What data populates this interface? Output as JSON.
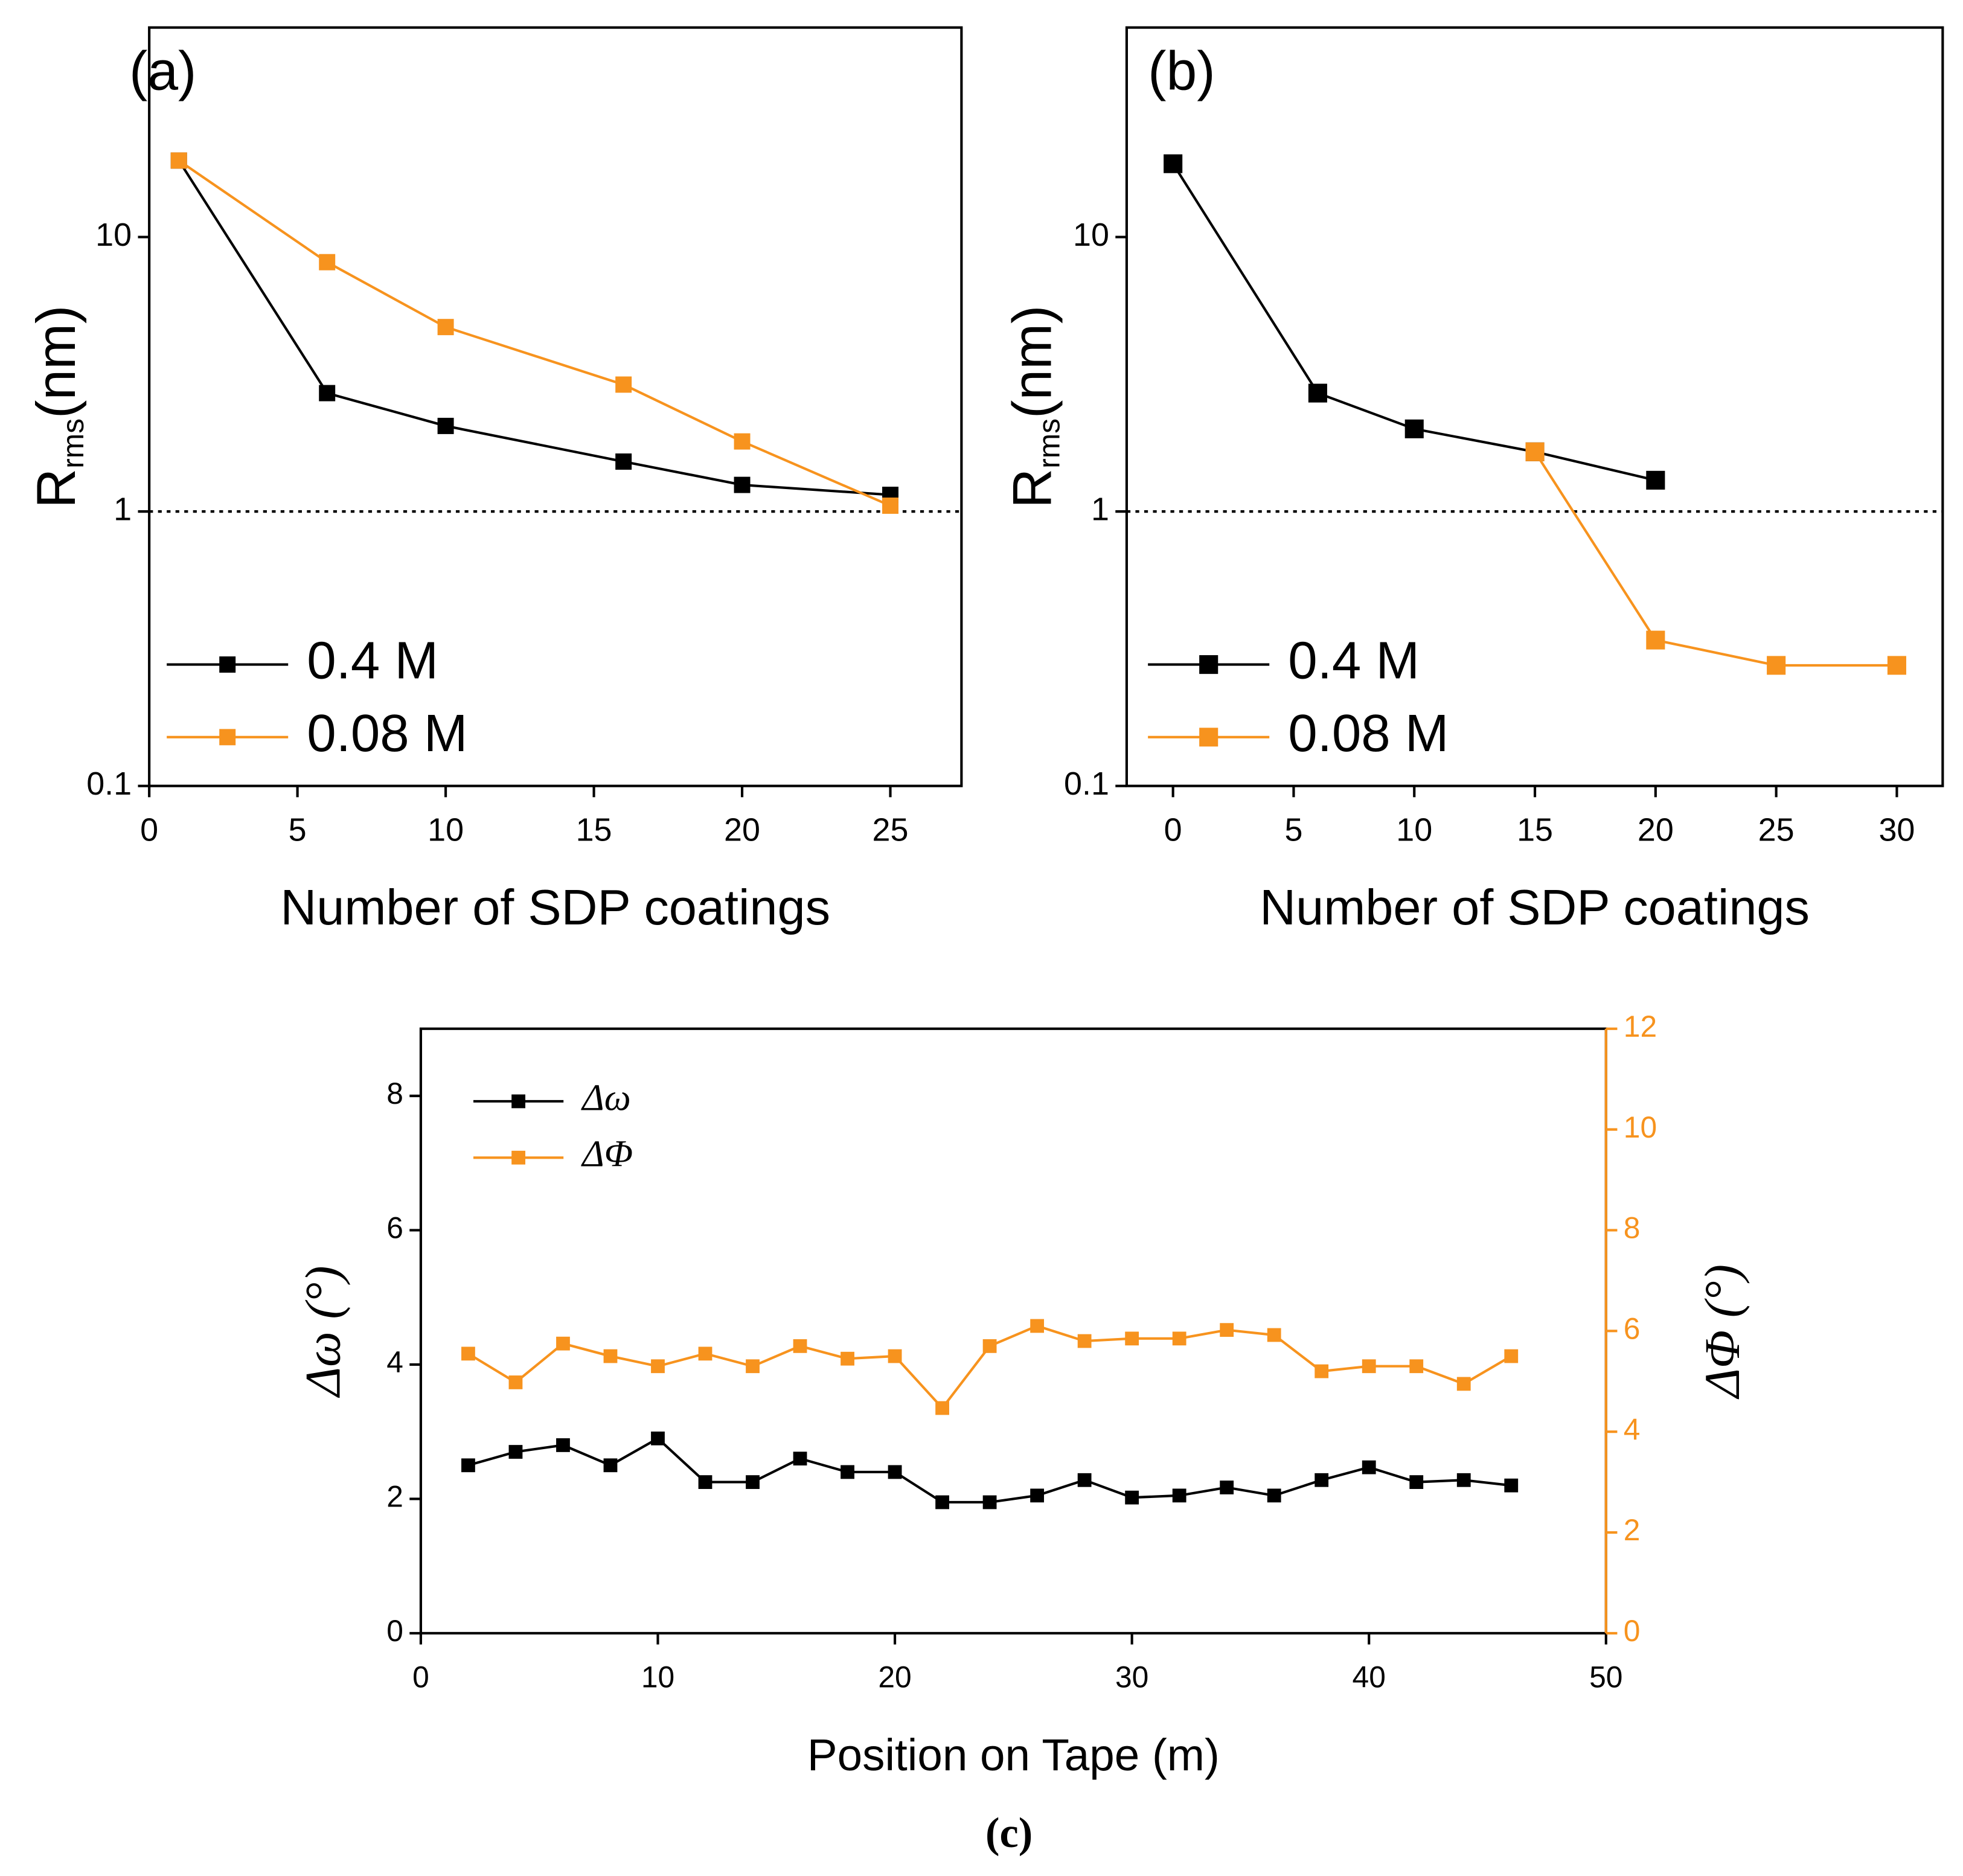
{
  "chart_data": [
    {
      "type": "line",
      "panel_label": "(a)",
      "x_label": "Number of SDP coatings",
      "y_label": "R",
      "y_label_sub": "rms",
      "y_label_unit": "(nm)",
      "xlim": [
        0,
        27.4
      ],
      "xticks": [
        0,
        5,
        10,
        15,
        20,
        25
      ],
      "ylim": [
        0.1,
        58
      ],
      "yticks": [
        0.1,
        1,
        10
      ],
      "y_log": true,
      "hline": 1,
      "legend": "lower left",
      "series": [
        {
          "name": "0.4 M",
          "color": "#000000",
          "x": [
            1,
            6,
            10,
            16,
            20,
            25
          ],
          "values": [
            19,
            2.7,
            2.05,
            1.52,
            1.25,
            1.15
          ]
        },
        {
          "name": "0.08 M",
          "color": "#f7931e",
          "x": [
            1,
            6,
            10,
            16,
            20,
            25
          ],
          "values": [
            19,
            8.1,
            4.7,
            2.9,
            1.8,
            1.05
          ]
        }
      ]
    },
    {
      "type": "line",
      "panel_label": "(b)",
      "x_label": "Number of SDP coatings",
      "y_label": "R",
      "y_label_sub": "rms",
      "y_label_unit": "(nm)",
      "xlim": [
        -1.92,
        31.9
      ],
      "xticks": [
        0,
        5,
        10,
        15,
        20,
        25,
        30
      ],
      "ylim": [
        0.1,
        58
      ],
      "yticks": [
        0.1,
        1,
        10
      ],
      "y_log": true,
      "hline": 1,
      "legend": "lower left",
      "series": [
        {
          "name": "0.4 M",
          "color": "#000000",
          "x": [
            0,
            6,
            10,
            15,
            20
          ],
          "values": [
            18.5,
            2.7,
            2.0,
            1.65,
            1.3
          ]
        },
        {
          "name": "0.08 M",
          "color": "#f7931e",
          "x": [
            15,
            20,
            25,
            30
          ],
          "values": [
            1.65,
            0.34,
            0.275,
            0.275
          ]
        }
      ]
    },
    {
      "type": "line",
      "caption": "(c)",
      "x_label": "Position on Tape (m)",
      "y_label": "Δω (°)",
      "y2_label": "ΔΦ (°)",
      "xlim": [
        0,
        50
      ],
      "xticks": [
        0,
        10,
        20,
        30,
        40,
        50
      ],
      "ylim": [
        0,
        9
      ],
      "yticks": [
        0,
        2,
        4,
        6,
        8
      ],
      "y2lim": [
        0,
        12
      ],
      "y2ticks": [
        0,
        2,
        4,
        6,
        8,
        10,
        12
      ],
      "legend": "upper left",
      "series": [
        {
          "name": "Δω",
          "color": "#000000",
          "x": [
            2,
            4,
            6,
            8,
            10,
            12,
            14,
            16,
            18,
            20,
            22,
            24,
            26,
            28,
            30,
            32,
            34,
            36,
            38,
            40,
            42,
            44,
            46
          ],
          "values": [
            2.5,
            2.7,
            2.8,
            2.5,
            2.9,
            2.25,
            2.25,
            2.6,
            2.4,
            2.4,
            1.95,
            1.95,
            2.05,
            2.28,
            2.02,
            2.05,
            2.17,
            2.05,
            2.28,
            2.47,
            2.25,
            2.28,
            2.2
          ]
        },
        {
          "name": "ΔΦ",
          "color": "#f7931e",
          "axis": "y2",
          "x": [
            2,
            4,
            6,
            8,
            10,
            12,
            14,
            16,
            18,
            20,
            22,
            24,
            26,
            28,
            30,
            32,
            34,
            36,
            38,
            40,
            42,
            44,
            46
          ],
          "values": [
            5.55,
            4.98,
            5.75,
            5.5,
            5.3,
            5.55,
            5.3,
            5.7,
            5.45,
            5.5,
            4.47,
            5.7,
            6.1,
            5.8,
            5.85,
            5.85,
            6.02,
            5.92,
            5.2,
            5.3,
            5.3,
            4.95,
            5.5
          ]
        }
      ]
    }
  ]
}
